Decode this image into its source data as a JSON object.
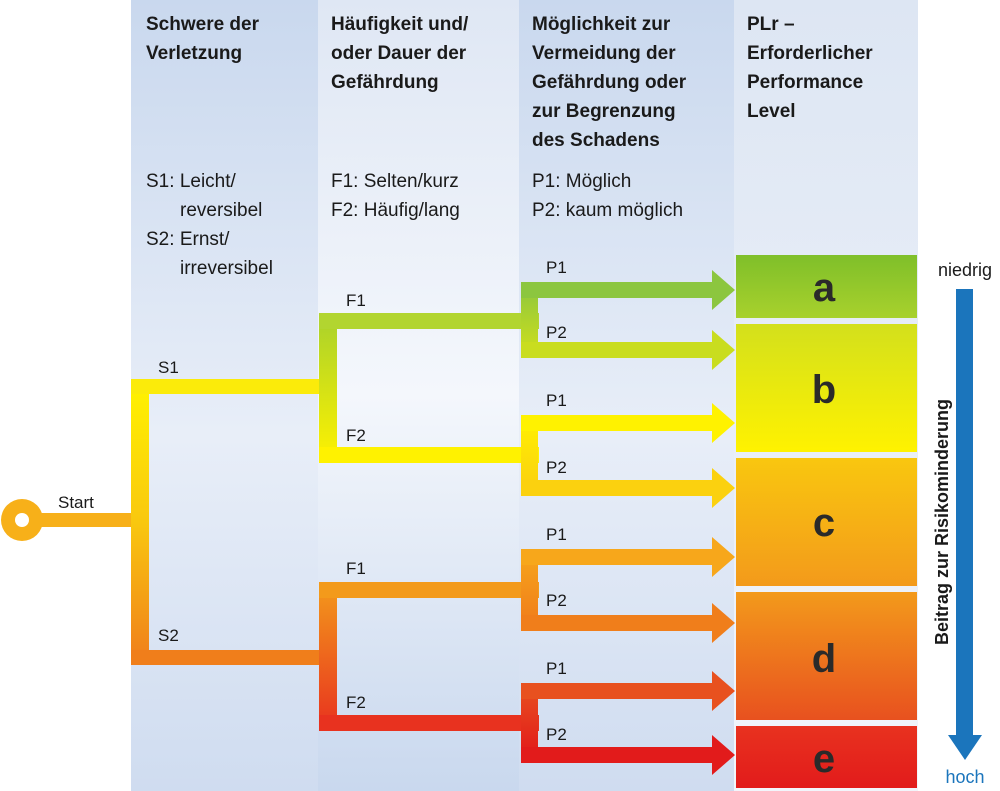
{
  "columns": [
    {
      "header": [
        "Schwere der",
        "Verletzung"
      ],
      "desc": [
        {
          "code": "S1:",
          "text": [
            "Leicht/",
            "reversibel"
          ]
        },
        {
          "code": "S2:",
          "text": [
            "Ernst/",
            "irreversibel"
          ]
        }
      ]
    },
    {
      "header": [
        "Häufigkeit und/",
        "oder Dauer der",
        "Gefährdung"
      ],
      "desc": [
        "F1: Selten/kurz",
        "F2: Häufig/lang"
      ]
    },
    {
      "header": [
        "Möglichkeit zur",
        "Vermeidung der",
        "Gefährdung oder",
        "zur Begrenzung",
        "des Schadens"
      ],
      "desc": [
        "P1: Möglich",
        "P2: kaum möglich"
      ]
    },
    {
      "header": [
        "PLr –",
        "Erforderlicher",
        "Performance",
        "Level"
      ]
    }
  ],
  "start_label": "Start",
  "branch_labels": {
    "s1": "S1",
    "s2": "S2",
    "f1_top": "F1",
    "f2_top": "F2",
    "f1_bottom": "F1",
    "f2_bottom": "F2",
    "p1": "P1",
    "p2": "P2"
  },
  "levels": [
    {
      "letter": "a",
      "color_top": "#7fbf2a",
      "color_bottom": "#a8d12c"
    },
    {
      "letter": "b",
      "color_top": "#d3e01c",
      "color_bottom": "#fff200"
    },
    {
      "letter": "c",
      "color_top": "#f9c70f",
      "color_bottom": "#f39a1b"
    },
    {
      "letter": "d",
      "color_top": "#f39a1b",
      "color_bottom": "#e8511f"
    },
    {
      "letter": "e",
      "color_top": "#e8321f",
      "color_bottom": "#e21b1b"
    }
  ],
  "scale": {
    "low": "niedrig",
    "high": "hoch",
    "title": "Beitrag zur Risikominderung",
    "color": "#1b75bc"
  }
}
